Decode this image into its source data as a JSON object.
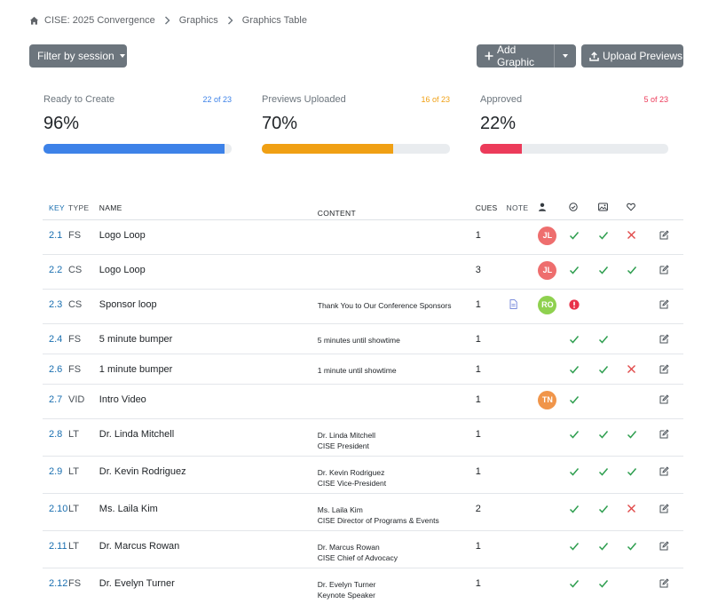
{
  "breadcrumb": {
    "items": [
      "CISE: 2025 Convergence",
      "Graphics",
      "Graphics Table"
    ]
  },
  "toolbar": {
    "filter_label": "Filter by session",
    "add_label": "Add Graphic",
    "upload_label": "Upload Previews"
  },
  "stats": [
    {
      "label": "Ready to Create",
      "count": "22 of 23",
      "percent": "96%",
      "fill": 0.96,
      "color": "#3d82e8"
    },
    {
      "label": "Previews Uploaded",
      "count": "16 of 23",
      "percent": "70%",
      "fill": 0.7,
      "color": "#f0a014"
    },
    {
      "label": "Approved",
      "count": "5 of 23",
      "percent": "22%",
      "fill": 0.22,
      "color": "#ec3b5a"
    }
  ],
  "table": {
    "headers": {
      "key": "KEY",
      "type": "TYPE",
      "name": "NAME",
      "content": "CONTENT",
      "cues": "CUES",
      "note": "NOTE"
    },
    "rows": [
      {
        "key": "2.1",
        "type": "FS",
        "name": "Logo Loop",
        "content1": "",
        "content2": "",
        "cues": "1",
        "note": false,
        "avatar": "JL",
        "avatar_color": "#ee6e6e",
        "ready": "check",
        "preview": "check",
        "approved": "x"
      },
      {
        "key": "2.2",
        "type": "CS",
        "name": "Logo Loop",
        "content1": "",
        "content2": "",
        "cues": "3",
        "note": false,
        "avatar": "JL",
        "avatar_color": "#ee6e6e",
        "ready": "check",
        "preview": "check",
        "approved": "check"
      },
      {
        "key": "2.3",
        "type": "CS",
        "name": "Sponsor loop",
        "content1": "Thank You to Our Conference Sponsors",
        "content2": "",
        "cues": "1",
        "note": true,
        "avatar": "RO",
        "avatar_color": "#8fd14f",
        "ready": "alert",
        "preview": "",
        "approved": ""
      },
      {
        "key": "2.4",
        "type": "FS",
        "name": "5 minute bumper",
        "content1": "5 minutes until showtime",
        "content2": "",
        "cues": "1",
        "note": false,
        "avatar": "",
        "avatar_color": "",
        "ready": "check",
        "preview": "check",
        "approved": ""
      },
      {
        "key": "2.6",
        "type": "FS",
        "name": "1 minute bumper",
        "content1": "1 minute until showtime",
        "content2": "",
        "cues": "1",
        "note": false,
        "avatar": "",
        "avatar_color": "",
        "ready": "check",
        "preview": "check",
        "approved": "x"
      },
      {
        "key": "2.7",
        "type": "VID",
        "name": "Intro Video",
        "content1": "",
        "content2": "",
        "cues": "1",
        "note": false,
        "avatar": "TN",
        "avatar_color": "#f0954a",
        "ready": "check",
        "preview": "",
        "approved": ""
      },
      {
        "key": "2.8",
        "type": "LT",
        "name": "Dr. Linda Mitchell",
        "content1": "Dr. Linda Mitchell",
        "content2": "CISE President",
        "cues": "1",
        "note": false,
        "avatar": "",
        "avatar_color": "",
        "ready": "check",
        "preview": "check",
        "approved": "check"
      },
      {
        "key": "2.9",
        "type": "LT",
        "name": "Dr. Kevin Rodriguez",
        "content1": "Dr. Kevin Rodriguez",
        "content2": "CISE Vice-President",
        "cues": "1",
        "note": false,
        "avatar": "",
        "avatar_color": "",
        "ready": "check",
        "preview": "check",
        "approved": "check"
      },
      {
        "key": "2.10",
        "type": "LT",
        "name": "Ms. Laila Kim",
        "content1": "Ms. Laila Kim",
        "content2": "CISE Director of Programs & Events",
        "cues": "2",
        "note": false,
        "avatar": "",
        "avatar_color": "",
        "ready": "check",
        "preview": "check",
        "approved": "x"
      },
      {
        "key": "2.11",
        "type": "LT",
        "name": "Dr. Marcus Rowan",
        "content1": "Dr. Marcus Rowan",
        "content2": "CISE Chief of Advocacy",
        "cues": "1",
        "note": false,
        "avatar": "",
        "avatar_color": "",
        "ready": "check",
        "preview": "check",
        "approved": "check"
      },
      {
        "key": "2.12",
        "type": "FS",
        "name": "Dr. Evelyn Turner",
        "content1": "Dr. Evelyn Turner",
        "content2": "Keynote Speaker",
        "cues": "1",
        "note": false,
        "avatar": "",
        "avatar_color": "",
        "ready": "check",
        "preview": "check",
        "approved": ""
      }
    ]
  },
  "colors": {
    "check": "#2e9e4f",
    "x": "#e04848",
    "alert": "#e8334a",
    "key_link": "#1a6fb0",
    "button": "#6c757d"
  }
}
